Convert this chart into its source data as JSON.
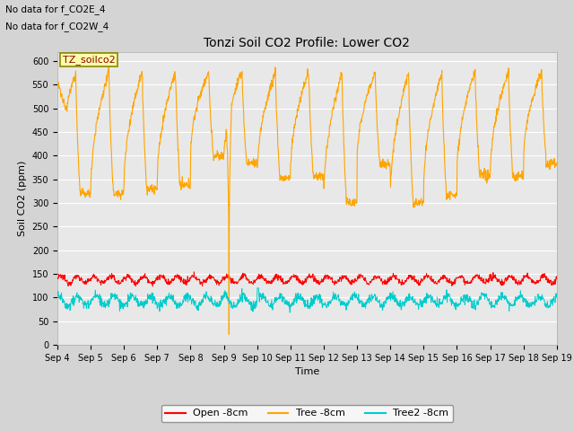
{
  "title": "Tonzi Soil CO2 Profile: Lower CO2",
  "ylabel": "Soil CO2 (ppm)",
  "xlabel": "Time",
  "ylim": [
    0,
    620
  ],
  "yticks": [
    0,
    50,
    100,
    150,
    200,
    250,
    300,
    350,
    400,
    450,
    500,
    550,
    600
  ],
  "annotation_lines": [
    "No data for f_CO2E_4",
    "No data for f_CO2W_4"
  ],
  "legend_box_label": "TZ_soilco2",
  "legend_entries": [
    "Open -8cm",
    "Tree -8cm",
    "Tree2 -8cm"
  ],
  "line_colors": [
    "#ff0000",
    "#ffa500",
    "#00cccc"
  ],
  "background_color": "#e8e8e8",
  "fig_bg_color": "#d4d4d4",
  "n_pts": 1500,
  "n_days": 15,
  "open_base": 138,
  "open_amp": 7,
  "open_noise": 3,
  "tree_peak": 578,
  "tree_trough_base": 350,
  "tree_trough_noise": 30,
  "tree2_base": 93,
  "tree2_amp": 10,
  "tree2_noise": 5,
  "spike_day": 5.15,
  "spike_min": 22
}
